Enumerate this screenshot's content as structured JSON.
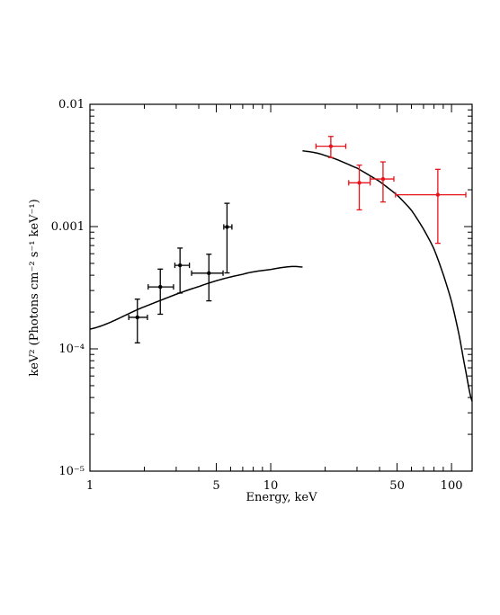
{
  "chart_data": {
    "type": "scatter",
    "xlabel": "Energy, keV",
    "ylabel": "keV² (Photons cm⁻² s⁻¹ keV⁻¹)",
    "xscale": "log",
    "yscale": "log",
    "xlim": [
      1,
      130
    ],
    "ylim": [
      1e-05,
      0.01
    ],
    "grid": false,
    "x_tick_labels": [
      {
        "value": 1,
        "label": "1"
      },
      {
        "value": 5,
        "label": "5"
      },
      {
        "value": 10,
        "label": "10"
      },
      {
        "value": 50,
        "label": "50"
      },
      {
        "value": 100,
        "label": "100"
      }
    ],
    "y_tick_labels": [
      {
        "value": 0.01,
        "label": "0.01"
      },
      {
        "value": 0.001,
        "label": "0.001"
      },
      {
        "value": 0.0001,
        "label": "10⁻⁴"
      },
      {
        "value": 1e-05,
        "label": "10⁻⁵"
      }
    ],
    "series": [
      {
        "color": "#000000",
        "points": [
          {
            "x": 1.83,
            "xlo": 1.64,
            "xhi": 2.08,
            "y": 0.000181,
            "ylo": 0.000112,
            "yhi": 0.000255
          },
          {
            "x": 2.45,
            "xlo": 2.1,
            "xhi": 2.9,
            "y": 0.000321,
            "ylo": 0.000192,
            "yhi": 0.000449
          },
          {
            "x": 3.15,
            "xlo": 2.95,
            "xhi": 3.55,
            "y": 0.000482,
            "ylo": 0.000286,
            "yhi": 0.000667
          },
          {
            "x": 4.55,
            "xlo": 3.65,
            "xhi": 5.45,
            "y": 0.000416,
            "ylo": 0.000247,
            "yhi": 0.000594
          },
          {
            "x": 5.73,
            "xlo": 5.5,
            "xhi": 6.1,
            "y": 0.000993,
            "ylo": 0.000418,
            "yhi": 0.00155
          }
        ]
      },
      {
        "color": "#e8141c",
        "points": [
          {
            "x": 21.5,
            "xlo": 17.8,
            "xhi": 26.0,
            "y": 0.00454,
            "ylo": 0.00367,
            "yhi": 0.00546
          },
          {
            "x": 30.9,
            "xlo": 27.0,
            "xhi": 35.5,
            "y": 0.00228,
            "ylo": 0.00137,
            "yhi": 0.00318
          },
          {
            "x": 41.8,
            "xlo": 35.5,
            "xhi": 48.0,
            "y": 0.00245,
            "ylo": 0.00159,
            "yhi": 0.00338
          },
          {
            "x": 84.0,
            "xlo": 49.0,
            "xhi": 120.0,
            "y": 0.00182,
            "ylo": 0.00073,
            "yhi": 0.00294
          }
        ]
      }
    ],
    "model_curves": [
      {
        "color": "#000000",
        "points": [
          [
            1.0,
            0.000145
          ],
          [
            2.0,
            0.000221
          ],
          [
            4.0,
            0.000323
          ],
          [
            7.0,
            0.000407
          ],
          [
            10.0,
            0.000446
          ],
          [
            13.0,
            0.000471
          ],
          [
            15.0,
            0.000467
          ]
        ]
      },
      {
        "color": "#000000",
        "points": [
          [
            15.0,
            0.00416
          ],
          [
            20.0,
            0.00381
          ],
          [
            30.0,
            0.00301
          ],
          [
            40.0,
            0.00234
          ],
          [
            50.0,
            0.00181
          ],
          [
            60.0,
            0.00136
          ],
          [
            70.0,
            0.000955
          ],
          [
            80.0,
            0.000655
          ],
          [
            90.0,
            0.000407
          ],
          [
            100.0,
            0.000244
          ],
          [
            110.0,
            0.000131
          ],
          [
            120.0,
            6.53e-05
          ],
          [
            130.0,
            3.72e-05
          ]
        ]
      }
    ]
  }
}
